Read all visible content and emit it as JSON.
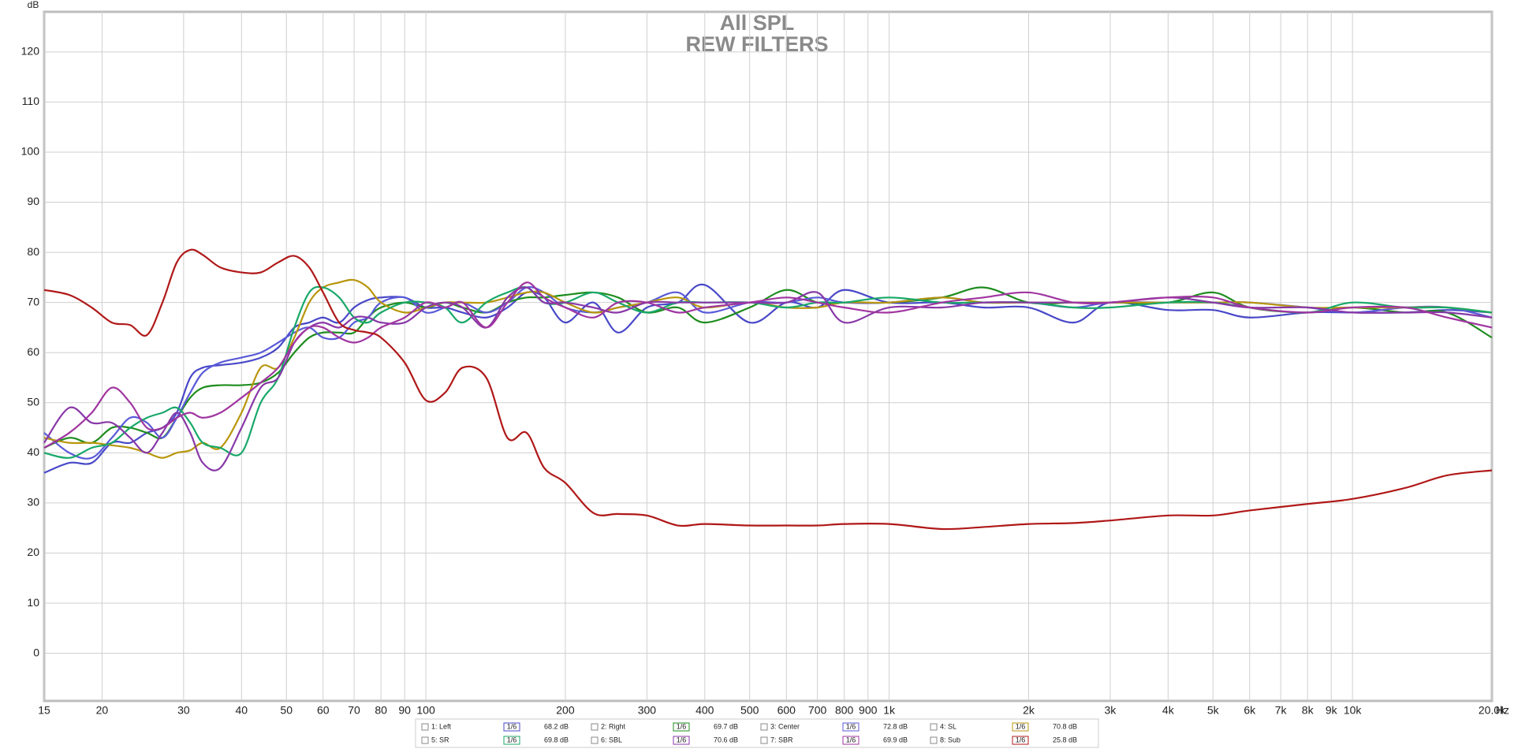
{
  "chart_data": {
    "type": "line",
    "title": "All SPL",
    "subtitle": "REW FILTERS",
    "x_unit": "Hz",
    "y_unit": "dB",
    "xlog": true,
    "grid": true,
    "xlim": [
      15,
      20000
    ],
    "ylim": [
      -9.5,
      128
    ],
    "xticks": [
      15,
      20,
      30,
      40,
      50,
      60,
      70,
      80,
      90,
      100,
      200,
      300,
      400,
      500,
      600,
      700,
      800,
      900,
      {
        "value": 1000,
        "label": "1k"
      },
      {
        "value": 2000,
        "label": "2k"
      },
      {
        "value": 3000,
        "label": "3k"
      },
      {
        "value": 4000,
        "label": "4k"
      },
      {
        "value": 5000,
        "label": "5k"
      },
      {
        "value": 6000,
        "label": "6k"
      },
      {
        "value": 7000,
        "label": "7k"
      },
      {
        "value": 8000,
        "label": "8k"
      },
      {
        "value": 9000,
        "label": "9k"
      },
      {
        "value": 10000,
        "label": "10k"
      },
      {
        "value": 20000,
        "label": "20.0k"
      }
    ],
    "yticks": [
      0,
      10,
      20,
      30,
      40,
      50,
      60,
      70,
      80,
      90,
      100,
      110,
      120
    ],
    "x": [
      15,
      17,
      19,
      21,
      23,
      25,
      27,
      29,
      31,
      33,
      36,
      40,
      44,
      48,
      52,
      56,
      60,
      65,
      70,
      75,
      80,
      90,
      100,
      110,
      120,
      135,
      150,
      165,
      180,
      200,
      230,
      260,
      300,
      350,
      400,
      500,
      600,
      700,
      800,
      1000,
      1300,
      1600,
      2000,
      2500,
      3000,
      4000,
      5000,
      6000,
      8000,
      10000,
      13000,
      16000,
      20000
    ],
    "series": [
      {
        "name": "1: Left",
        "color": "#4848c8",
        "smoothing": "1/6",
        "level": "68.2 dB",
        "values": [
          36,
          38,
          38,
          42,
          42,
          44,
          45,
          48,
          55,
          57,
          57.5,
          58,
          59,
          61,
          65,
          66,
          67,
          66,
          69,
          70.5,
          71,
          71,
          69,
          69,
          68,
          67,
          69,
          72,
          71,
          66,
          70,
          64,
          69,
          70,
          73.5,
          66,
          70,
          69,
          72.5,
          70,
          70,
          69,
          69,
          66,
          70,
          68.5,
          68.5,
          67,
          68,
          68,
          68,
          68.5,
          68
        ]
      },
      {
        "name": "2: Right",
        "color": "#1e8c1e",
        "smoothing": "1/6",
        "level": "69.7 dB",
        "values": [
          41,
          43,
          42,
          45,
          45,
          44,
          43,
          47,
          51,
          53,
          53.5,
          53.5,
          54,
          56,
          60,
          63,
          64,
          64,
          64,
          67,
          69,
          70,
          69,
          70,
          69,
          68,
          70,
          71,
          71,
          71.5,
          72,
          71,
          68,
          69,
          66,
          69,
          72.5,
          70,
          70,
          70,
          71,
          73,
          70,
          70,
          70,
          70,
          72,
          69,
          68,
          69,
          68,
          68,
          63
        ]
      },
      {
        "name": "3: Center",
        "color": "#5a5ad8",
        "smoothing": "1/6",
        "level": "72.8 dB",
        "values": [
          44,
          40,
          39,
          43,
          47,
          46,
          43,
          47,
          52,
          56,
          58,
          59,
          60,
          62,
          64,
          65,
          63,
          63,
          66,
          67,
          70,
          71,
          68,
          69,
          70,
          68,
          70,
          73,
          72,
          69,
          68,
          69,
          70,
          72,
          68,
          70,
          70,
          71,
          70,
          70,
          71,
          70,
          70,
          69,
          70,
          70,
          70,
          70,
          69,
          68,
          69,
          69,
          67
        ]
      },
      {
        "name": "4: SL",
        "color": "#b8960c",
        "smoothing": "1/6",
        "level": "70.8 dB",
        "values": [
          43,
          42,
          42,
          41.5,
          41,
          40,
          39,
          40,
          40.5,
          42,
          41,
          48,
          57,
          57,
          63,
          70,
          73,
          74,
          74.5,
          73,
          70,
          68,
          69,
          70,
          70,
          70,
          71,
          72,
          72,
          70,
          68,
          69,
          70,
          71,
          69,
          70,
          69,
          69,
          70,
          70,
          71,
          70,
          70,
          70,
          70,
          70,
          70,
          70,
          69,
          69,
          69,
          69,
          68
        ]
      },
      {
        "name": "5: SR",
        "color": "#18a868",
        "smoothing": "1/6",
        "level": "69.8 dB",
        "values": [
          40,
          39,
          41,
          42,
          45,
          47,
          48,
          49,
          46,
          42,
          41,
          40,
          50,
          55,
          65,
          72,
          73,
          71,
          67,
          66,
          68,
          70,
          70,
          69,
          66,
          70,
          72,
          73,
          70,
          70,
          72,
          70,
          68,
          70,
          70,
          70,
          69,
          70,
          70,
          71,
          70,
          70,
          70,
          69,
          69,
          70,
          70,
          69,
          68,
          70,
          69,
          69,
          68
        ]
      },
      {
        "name": "6: SBL",
        "color": "#8838a8",
        "smoothing": "1/6",
        "level": "70.6 dB",
        "values": [
          42,
          49,
          46,
          46,
          43,
          40,
          44,
          48,
          44,
          38,
          37,
          45,
          53,
          55,
          62,
          65,
          66,
          65,
          67,
          67,
          66,
          66,
          69,
          70,
          69,
          65,
          71,
          73,
          70,
          70,
          69,
          68,
          70,
          70,
          70,
          70,
          70,
          72,
          66,
          69,
          69,
          70,
          70,
          70,
          70,
          71,
          70,
          69,
          69,
          68,
          68,
          68,
          67
        ]
      },
      {
        "name": "7: SBR",
        "color": "#a035a0",
        "smoothing": "1/6",
        "level": "69.9 dB",
        "values": [
          41,
          44,
          48,
          53,
          50,
          45,
          45,
          47,
          48,
          47,
          48,
          51,
          54,
          57,
          62,
          65,
          65,
          63,
          62,
          63,
          65,
          67,
          70,
          69,
          70,
          65,
          70,
          74,
          71,
          69,
          67,
          70,
          70,
          68,
          69,
          70,
          71,
          70,
          69,
          68,
          70,
          71,
          72,
          70,
          70,
          71,
          71,
          69,
          68,
          69,
          69,
          67,
          65
        ]
      },
      {
        "name": "8: Sub",
        "color": "#b01818",
        "smoothing": "1/6",
        "level": "25.8 dB",
        "values": [
          72.5,
          71.5,
          69,
          66,
          65.5,
          63.5,
          70,
          78,
          80.5,
          79.5,
          77,
          76,
          76,
          78,
          79.3,
          77,
          72,
          66,
          64.5,
          64,
          63,
          58,
          50.5,
          52,
          57,
          55,
          43,
          44,
          37,
          34,
          28,
          27.8,
          27.5,
          25.5,
          25.8,
          25.5,
          25.5,
          25.5,
          25.8,
          25.8,
          24.8,
          25.2,
          25.8,
          26,
          26.5,
          27.5,
          27.5,
          28.5,
          29.8,
          30.8,
          33,
          35.5,
          36.5
        ]
      }
    ]
  }
}
